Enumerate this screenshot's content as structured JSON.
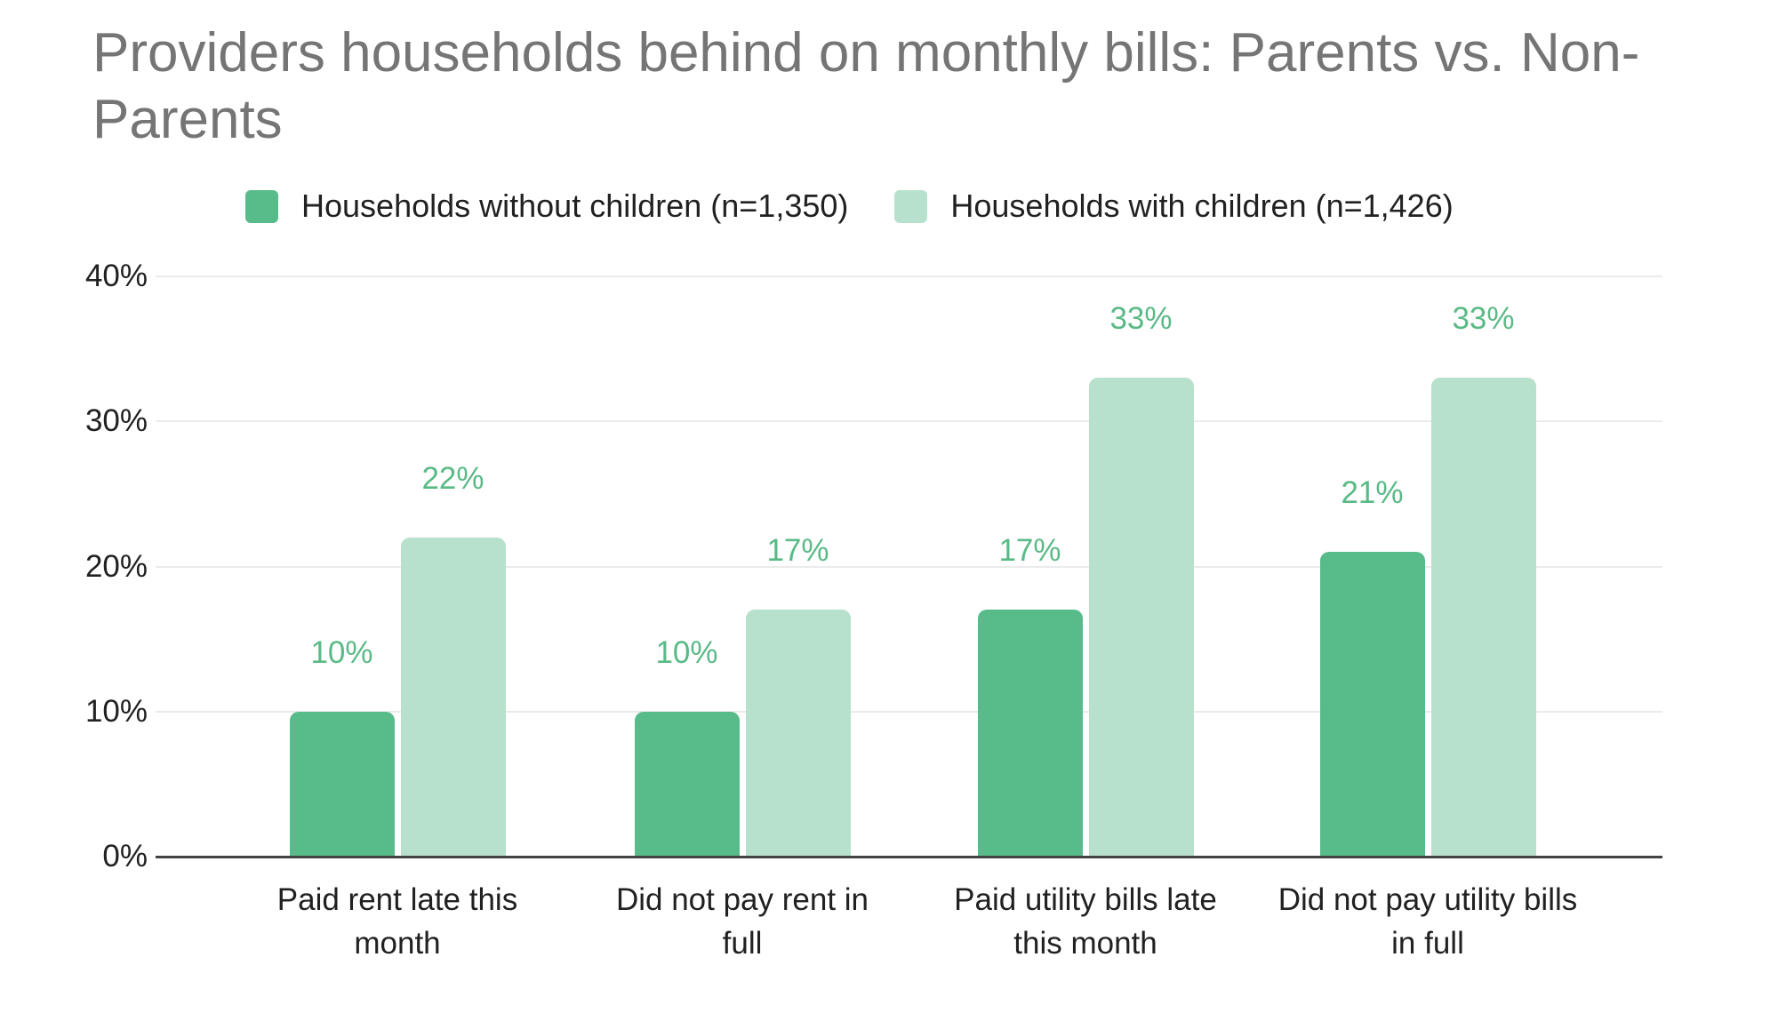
{
  "colors": {
    "background": "#ffffff",
    "title_text": "#757575",
    "axis_text": "#212121",
    "legend_text": "#212121",
    "data_label_text": "#5aba86",
    "gridline": "#ebebeb",
    "axis_line": "#424242",
    "series_without_children": "#57bb8a",
    "series_with_children": "#b7e1cd"
  },
  "header": {
    "title": "Providers households behind on monthly bills: Parents vs. Non-Parents",
    "title_lines": [
      "Providers households behind on monthly bills: Parents vs. Non-",
      "Parents"
    ]
  },
  "chart_data": {
    "type": "bar",
    "title": "Providers households behind on monthly bills: Parents vs. Non-Parents",
    "categories": [
      "Paid rent late this month",
      "Did not pay rent in full",
      "Paid utility bills late this month",
      "Did not pay utility bills in full"
    ],
    "categories_lines": [
      [
        "Paid rent late this",
        "month"
      ],
      [
        "Did not pay rent in",
        "full"
      ],
      [
        "Paid utility bills late",
        "this month"
      ],
      [
        "Did not pay utility bills",
        "in full"
      ]
    ],
    "series": [
      {
        "name": "Households without children (n=1,350)",
        "color": "#57bb8a",
        "values": [
          10,
          10,
          17,
          21
        ],
        "value_labels": [
          "10%",
          "10%",
          "17%",
          "21%"
        ]
      },
      {
        "name": "Households with children (n=1,426)",
        "color": "#b7e1cd",
        "values": [
          22,
          17,
          33,
          33
        ],
        "value_labels": [
          "22%",
          "17%",
          "33%",
          "33%"
        ]
      }
    ],
    "y_ticks": [
      {
        "value": 0,
        "label": "0%"
      },
      {
        "value": 10,
        "label": "10%"
      },
      {
        "value": 20,
        "label": "20%"
      },
      {
        "value": 30,
        "label": "30%"
      },
      {
        "value": 40,
        "label": "40%"
      }
    ],
    "ylim": [
      0,
      40
    ],
    "xlabel": "",
    "ylabel": "",
    "grid": true,
    "legend_position": "top"
  }
}
